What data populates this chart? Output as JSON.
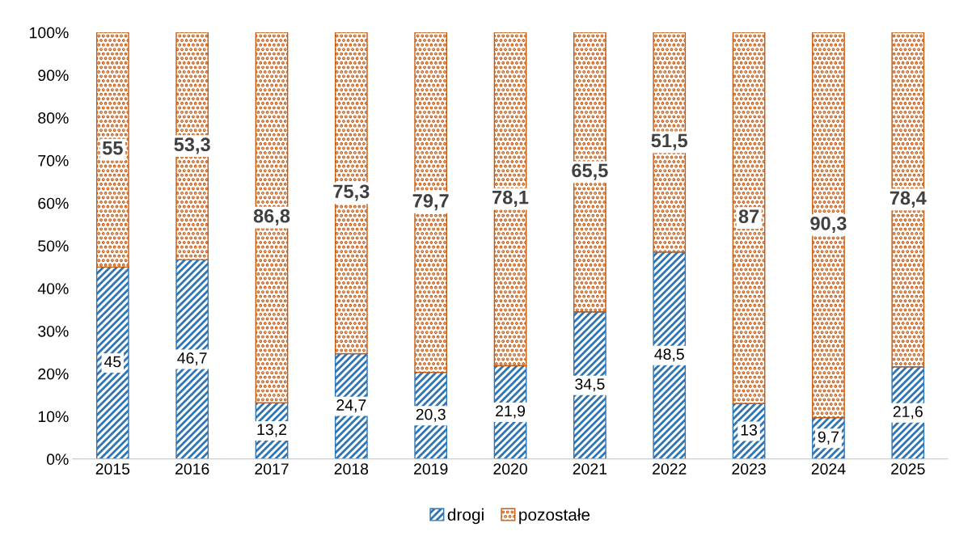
{
  "chart_data": {
    "type": "bar",
    "stacked": true,
    "categories": [
      "2015",
      "2016",
      "2017",
      "2018",
      "2019",
      "2020",
      "2021",
      "2022",
      "2023",
      "2024",
      "2025"
    ],
    "series": [
      {
        "name": "drogi",
        "color": "#2e75b6",
        "values": [
          45,
          46.7,
          13.2,
          24.7,
          20.3,
          21.9,
          34.5,
          48.5,
          13,
          9.7,
          21.6
        ],
        "value_labels": [
          "45",
          "46,7",
          "13,2",
          "24,7",
          "20,3",
          "21,9",
          "34,5",
          "48,5",
          "13",
          "9,7",
          "21,6"
        ]
      },
      {
        "name": "pozostałe",
        "color": "#c55a11",
        "values": [
          55,
          53.3,
          86.8,
          75.3,
          79.7,
          78.1,
          65.5,
          51.5,
          87,
          90.3,
          78.4
        ],
        "value_labels": [
          "55",
          "53,3",
          "86,8",
          "75,3",
          "79,7",
          "78,1",
          "65,5",
          "51,5",
          "87",
          "90,3",
          "78,4"
        ]
      }
    ],
    "ylim": [
      0,
      100
    ],
    "yticks": [
      {
        "value": 0,
        "label": "0%"
      },
      {
        "value": 10,
        "label": "10%"
      },
      {
        "value": 20,
        "label": "20%"
      },
      {
        "value": 30,
        "label": "30%"
      },
      {
        "value": 40,
        "label": "40%"
      },
      {
        "value": 50,
        "label": "50%"
      },
      {
        "value": 60,
        "label": "60%"
      },
      {
        "value": 70,
        "label": "70%"
      },
      {
        "value": 80,
        "label": "80%"
      },
      {
        "value": 90,
        "label": "90%"
      },
      {
        "value": 100,
        "label": "100%"
      }
    ],
    "legend": "bottom",
    "grid": false
  }
}
